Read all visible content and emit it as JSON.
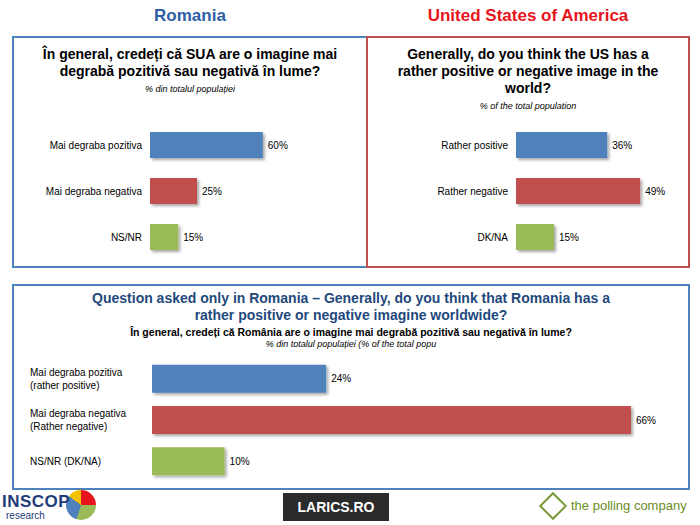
{
  "headings": [
    "Romania",
    "United States of America"
  ],
  "chart_data": [
    {
      "type": "bar",
      "orientation": "horizontal",
      "title": "În general, credeți că SUA are o imagine mai degrabă pozitivă sau negativă în lume?",
      "subtitle": "% din totalul populației",
      "categories": [
        "Mai degraba pozitiva",
        "Mai degraba negativa",
        "NS/NR"
      ],
      "values": [
        60,
        25,
        15
      ],
      "value_labels": [
        "60%",
        "25%",
        "15%"
      ],
      "colors": [
        "#4f81bd",
        "#c0504d",
        "#9bbb59"
      ],
      "xlim": [
        0,
        100
      ],
      "xticks": [
        0,
        100
      ],
      "grid": false,
      "data_labels": true,
      "tick_labels": "y"
    },
    {
      "type": "bar",
      "orientation": "horizontal",
      "title": "Generally, do you think the US has a rather positive or negative image in the world?",
      "subtitle": "%  of the total population",
      "categories": [
        "Rather positive",
        "Rather negative",
        "DK/NA"
      ],
      "values": [
        36,
        49,
        15
      ],
      "value_labels": [
        "36%",
        "49%",
        "15%"
      ],
      "colors": [
        "#4f81bd",
        "#c0504d",
        "#9bbb59"
      ],
      "xlim": [
        0,
        60
      ],
      "xticks": [
        0,
        60
      ],
      "grid": false,
      "data_labels": true,
      "tick_labels": "y"
    },
    {
      "type": "bar",
      "orientation": "horizontal",
      "title": "Question asked only in Romania – Generally, do you think that Romania has a rather positive or negative imagine worldwide?",
      "subtitle": "În general, credeți că România are o imagine mai degrabă pozitivă sau negativă în lume?",
      "annotations": [
        "% din totalul populației (% of the total popu"
      ],
      "categories": [
        "Mai degraba pozitiva (rather positive)",
        "Mai degraba negativa (Rather negative)",
        "NS/NR (DK/NA)"
      ],
      "values": [
        24,
        66,
        10
      ],
      "value_labels": [
        "24%",
        "66%",
        "10%"
      ],
      "colors": [
        "#4f81bd",
        "#c0504d",
        "#9bbb59"
      ],
      "xlim": [
        0,
        70
      ],
      "xticks": [
        0,
        70
      ],
      "grid": false,
      "data_labels": true,
      "tick_labels": "y"
    }
  ],
  "footer": {
    "inscop": [
      "INSCOP",
      "research"
    ],
    "larics": "LARICS.RO",
    "polling": "the polling company"
  }
}
